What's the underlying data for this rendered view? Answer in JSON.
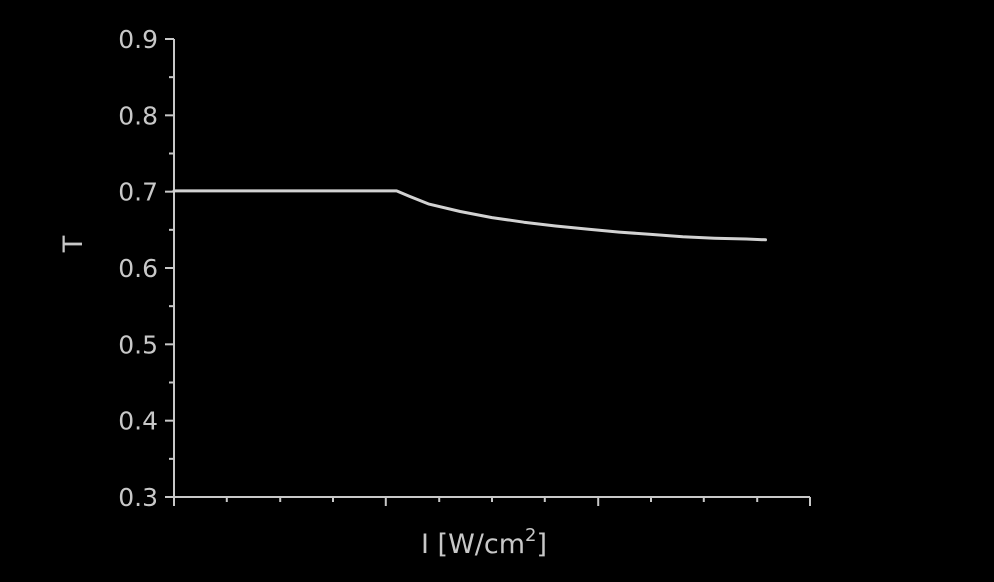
{
  "colors": {
    "background": "#000000",
    "foreground": "#c8c8c8",
    "series": "#d2d2d2"
  },
  "chart_data": {
    "type": "line",
    "title": "",
    "ylabel": "T",
    "xlabel": {
      "main": "I [W/cm",
      "sup": "2",
      "close": "]"
    },
    "xlim": [
      0,
      1
    ],
    "ylim": [
      0.3,
      0.9
    ],
    "x_major_ticks": [
      0,
      0.333,
      0.667,
      1.0
    ],
    "x_minor_ticks": [
      0.083,
      0.167,
      0.25,
      0.417,
      0.5,
      0.583,
      0.75,
      0.833,
      0.917
    ],
    "y_ticks": [
      0.3,
      0.4,
      0.5,
      0.6,
      0.7,
      0.8,
      0.9
    ],
    "y_tick_labels": [
      "0.3",
      "0.4",
      "0.5",
      "0.6",
      "0.7",
      "0.8",
      "0.9"
    ],
    "series": [
      {
        "x": [
          0.0,
          0.1,
          0.2,
          0.3,
          0.35,
          0.37,
          0.4,
          0.45,
          0.5,
          0.55,
          0.6,
          0.65,
          0.7,
          0.75,
          0.8,
          0.85,
          0.9,
          0.93
        ],
        "y": [
          0.701,
          0.701,
          0.701,
          0.701,
          0.701,
          0.694,
          0.684,
          0.674,
          0.666,
          0.66,
          0.655,
          0.651,
          0.647,
          0.644,
          0.641,
          0.639,
          0.638,
          0.637
        ]
      }
    ]
  }
}
